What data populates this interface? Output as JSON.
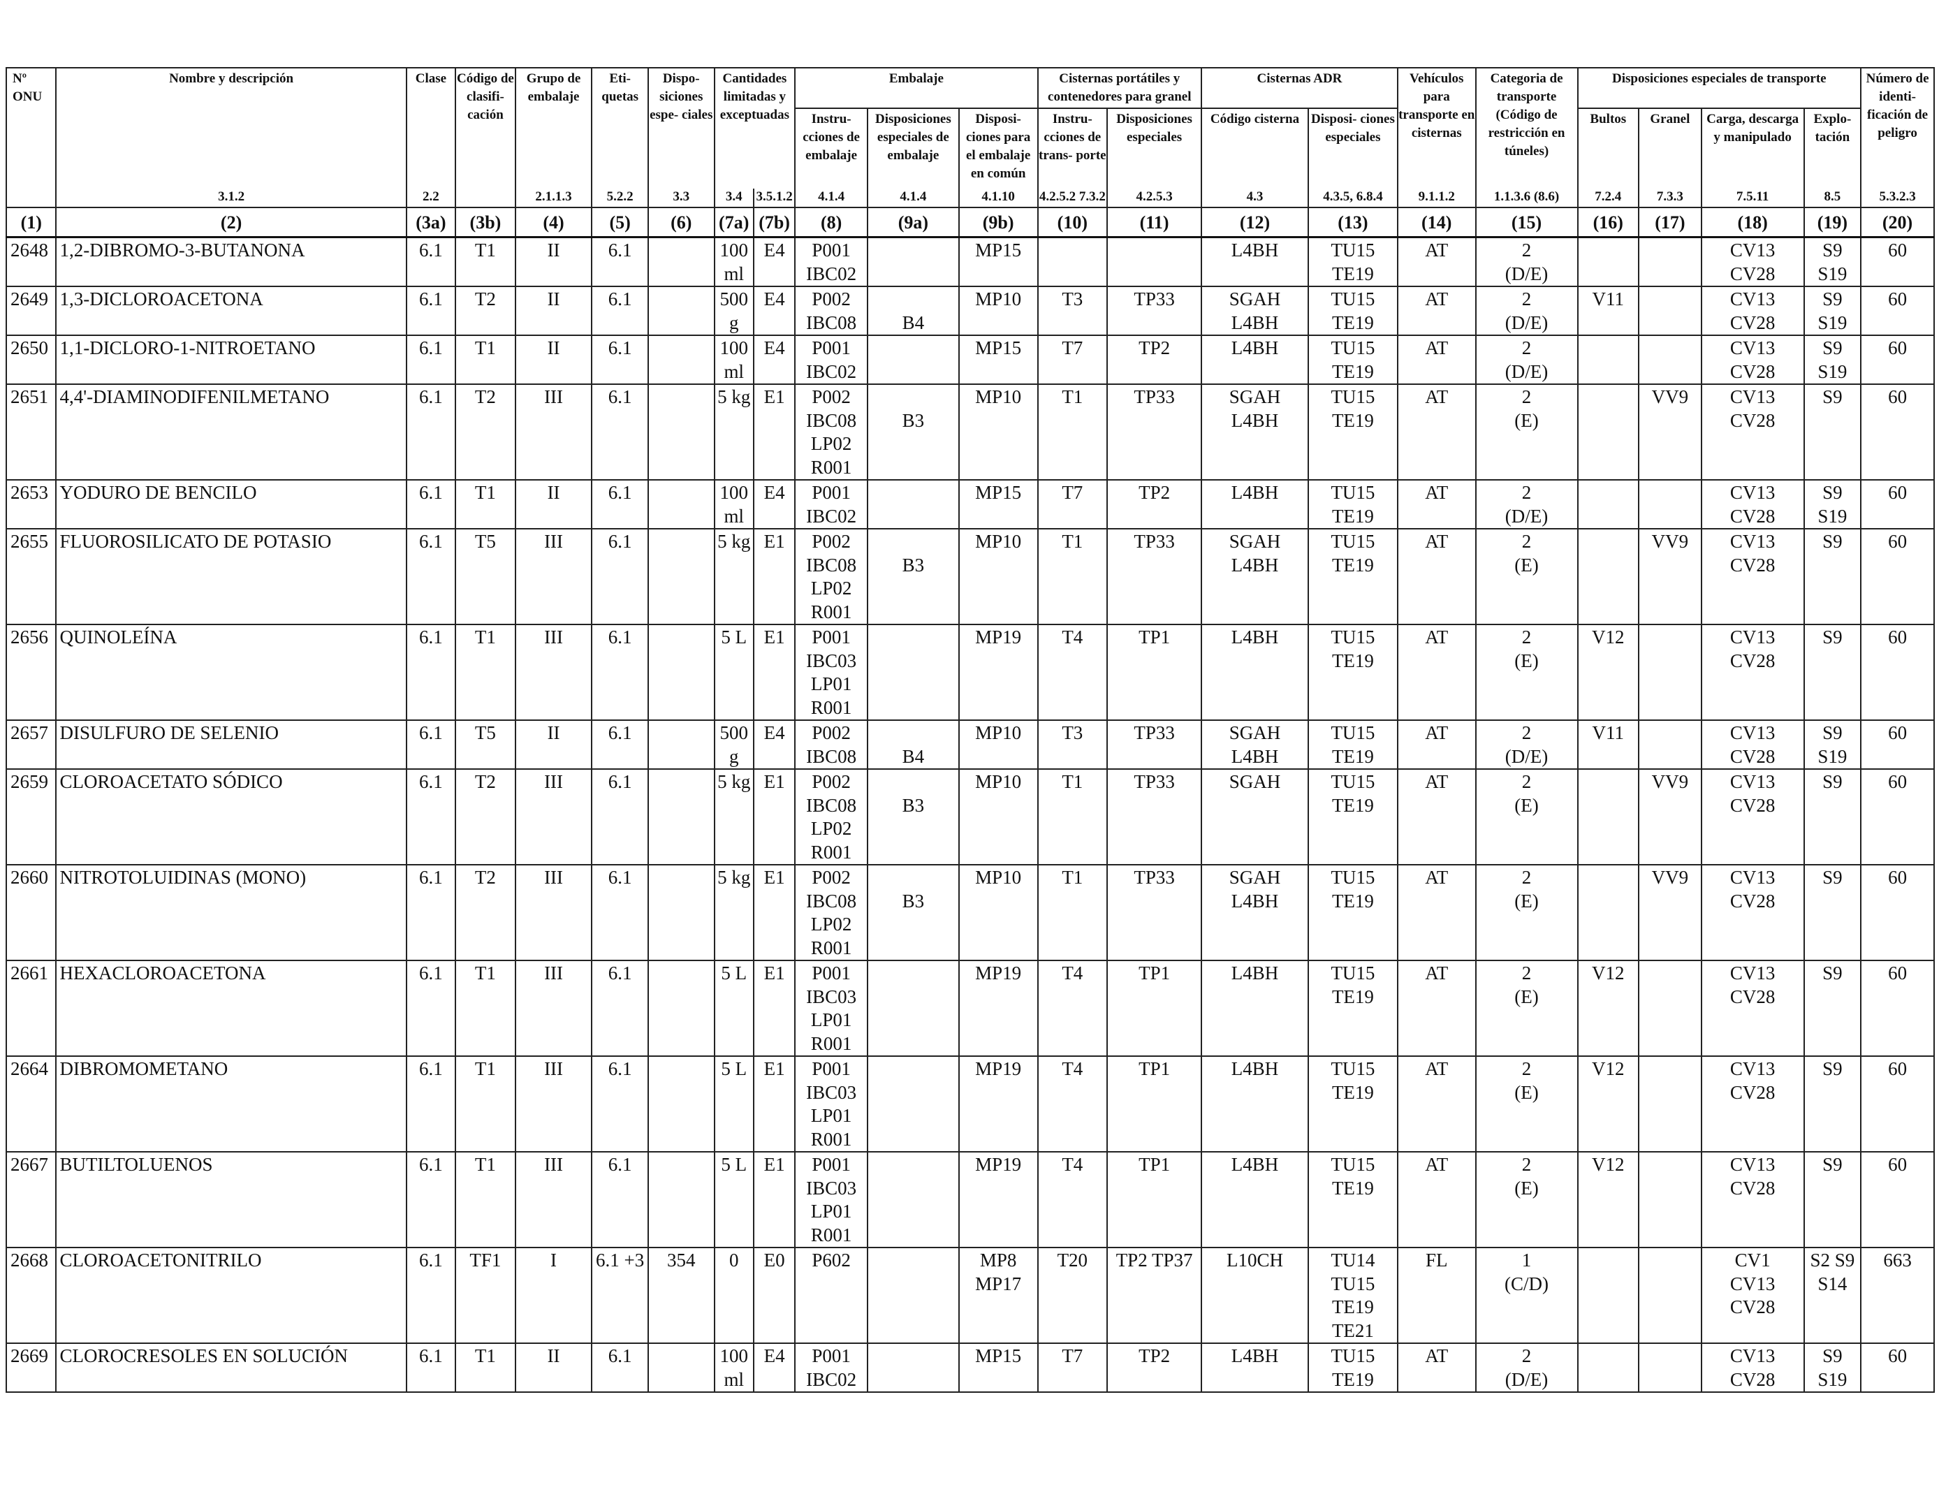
{
  "header": {
    "onu": "Nº ONU",
    "name": "Nombre y descripción",
    "clase": "Clase",
    "codigo": "Código de clasifi- cación",
    "grupo": "Grupo de embalaje",
    "etiquetas": "Eti- quetas",
    "disposiciones": "Dispo- siciones espe- ciales",
    "cantidades": "Cantidades limitadas y exceptuadas",
    "embalaje": "Embalaje",
    "instr_embalaje": "Instru- cciones de embalaje",
    "disp_esp_embalaje": "Disposiciones especiales de embalaje",
    "disp_comun": "Disposi- ciones para el embalaje en común",
    "cisternas_portatiles": "Cisternas portátiles y contenedores para granel",
    "instr_transporte": "Instru- cciones de trans- porte",
    "disp_esp_cist": "Disposiciones especiales",
    "cisternas_adr": "Cisternas ADR",
    "codigo_cisterna": "Código cisterna",
    "disp_esp_adr": "Disposi- ciones especiales",
    "vehiculos": "Vehículos para transporte en cisternas",
    "categoria": "Categoria de transporte (Código de restricción en túneles)",
    "disp_transporte": "Disposiciones especiales de transporte",
    "bultos": "Bultos",
    "granel": "Granel",
    "carga": "Carga, descarga y manipulado",
    "explotacion": "Explo- tación",
    "numero_id": "Número de identi- ficación de peligro"
  },
  "refs": [
    "3.1.2",
    "2.2",
    "",
    "2.1.1.3",
    "5.2.2",
    "3.3",
    "3.4",
    "3.5.1.2",
    "4.1.4",
    "4.1.4",
    "4.1.10",
    "4.2.5.2 7.3.2",
    "4.2.5.3",
    "4.3",
    "4.3.5, 6.8.4",
    "9.1.1.2",
    "1.1.3.6 (8.6)",
    "7.2.4",
    "7.3.3",
    "7.5.11",
    "8.5",
    "5.3.2.3"
  ],
  "col_numbers": [
    "(1)",
    "(2)",
    "(3a)",
    "(3b)",
    "(4)",
    "(5)",
    "(6)",
    "(7a)",
    "(7b)",
    "(8)",
    "(9a)",
    "(9b)",
    "(10)",
    "(11)",
    "(12)",
    "(13)",
    "(14)",
    "(15)",
    "(16)",
    "(17)",
    "(18)",
    "(19)",
    "(20)"
  ],
  "rows": [
    {
      "onu": "2648",
      "name": "1,2-DIBROMO-3-BUTANONA",
      "c3a": "6.1",
      "c3b": "T1",
      "c4": "II",
      "c5": "6.1",
      "c6": "",
      "c7a": "100 ml",
      "c7b": "E4",
      "c8": [
        "P001",
        "IBC02"
      ],
      "c9a": [
        "",
        ""
      ],
      "c9b": "MP15",
      "c10": "",
      "c11": "",
      "c12": [
        "L4BH"
      ],
      "c13": [
        "TU15",
        "TE19"
      ],
      "c14": "AT",
      "c15": [
        "2",
        "(D/E)"
      ],
      "c16": "",
      "c17": "",
      "c18": [
        "CV13",
        "CV28"
      ],
      "c19": [
        "S9",
        "S19"
      ],
      "c20": "60"
    },
    {
      "onu": "2649",
      "name": "1,3-DICLOROACETONA",
      "c3a": "6.1",
      "c3b": "T2",
      "c4": "II",
      "c5": "6.1",
      "c6": "",
      "c7a": "500 g",
      "c7b": "E4",
      "c8": [
        "P002",
        "IBC08"
      ],
      "c9a": [
        "",
        "B4"
      ],
      "c9b": "MP10",
      "c10": "T3",
      "c11": "TP33",
      "c12": [
        "SGAH",
        "L4BH"
      ],
      "c13": [
        "TU15",
        "TE19"
      ],
      "c14": "AT",
      "c15": [
        "2",
        "(D/E)"
      ],
      "c16": "V11",
      "c17": "",
      "c18": [
        "CV13",
        "CV28"
      ],
      "c19": [
        "S9",
        "S19"
      ],
      "c20": "60"
    },
    {
      "onu": "2650",
      "name": "1,1-DICLORO-1-NITROETANO",
      "c3a": "6.1",
      "c3b": "T1",
      "c4": "II",
      "c5": "6.1",
      "c6": "",
      "c7a": "100 ml",
      "c7b": "E4",
      "c8": [
        "P001",
        "IBC02"
      ],
      "c9a": [
        "",
        ""
      ],
      "c9b": "MP15",
      "c10": "T7",
      "c11": "TP2",
      "c12": [
        "L4BH"
      ],
      "c13": [
        "TU15",
        "TE19"
      ],
      "c14": "AT",
      "c15": [
        "2",
        "(D/E)"
      ],
      "c16": "",
      "c17": "",
      "c18": [
        "CV13",
        "CV28"
      ],
      "c19": [
        "S9",
        "S19"
      ],
      "c20": "60"
    },
    {
      "onu": "2651",
      "name": "4,4'-DIAMINODIFENILMETANO",
      "c3a": "6.1",
      "c3b": "T2",
      "c4": "III",
      "c5": "6.1",
      "c6": "",
      "c7a": "5 kg",
      "c7b": "E1",
      "c8": [
        "P002",
        "IBC08",
        "LP02",
        "R001"
      ],
      "c9a": [
        "",
        "B3"
      ],
      "c9b": "MP10",
      "c10": "T1",
      "c11": "TP33",
      "c12": [
        "SGAH",
        "L4BH"
      ],
      "c13": [
        "TU15",
        "TE19"
      ],
      "c14": "AT",
      "c15": [
        "2",
        "(E)"
      ],
      "c16": "",
      "c17": "VV9",
      "c18": [
        "CV13",
        "CV28"
      ],
      "c19": [
        "S9"
      ],
      "c20": "60"
    },
    {
      "onu": "2653",
      "name": "YODURO DE BENCILO",
      "c3a": "6.1",
      "c3b": "T1",
      "c4": "II",
      "c5": "6.1",
      "c6": "",
      "c7a": "100 ml",
      "c7b": "E4",
      "c8": [
        "P001",
        "IBC02"
      ],
      "c9a": [
        "",
        ""
      ],
      "c9b": "MP15",
      "c10": "T7",
      "c11": "TP2",
      "c12": [
        "L4BH"
      ],
      "c13": [
        "TU15",
        "TE19"
      ],
      "c14": "AT",
      "c15": [
        "2",
        "(D/E)"
      ],
      "c16": "",
      "c17": "",
      "c18": [
        "CV13",
        "CV28"
      ],
      "c19": [
        "S9",
        "S19"
      ],
      "c20": "60"
    },
    {
      "onu": "2655",
      "name": "FLUOROSILICATO DE POTASIO",
      "c3a": "6.1",
      "c3b": "T5",
      "c4": "III",
      "c5": "6.1",
      "c6": "",
      "c7a": "5 kg",
      "c7b": "E1",
      "c8": [
        "P002",
        "IBC08",
        "LP02",
        "R001"
      ],
      "c9a": [
        "",
        "B3"
      ],
      "c9b": "MP10",
      "c10": "T1",
      "c11": "TP33",
      "c12": [
        "SGAH",
        "L4BH"
      ],
      "c13": [
        "TU15",
        "TE19"
      ],
      "c14": "AT",
      "c15": [
        "2",
        "(E)"
      ],
      "c16": "",
      "c17": "VV9",
      "c18": [
        "CV13",
        "CV28"
      ],
      "c19": [
        "S9"
      ],
      "c20": "60"
    },
    {
      "onu": "2656",
      "name": "QUINOLEÍNA",
      "c3a": "6.1",
      "c3b": "T1",
      "c4": "III",
      "c5": "6.1",
      "c6": "",
      "c7a": "5 L",
      "c7b": "E1",
      "c8": [
        "P001",
        "IBC03",
        "LP01",
        "R001"
      ],
      "c9a": [
        "",
        ""
      ],
      "c9b": "MP19",
      "c10": "T4",
      "c11": "TP1",
      "c12": [
        "L4BH"
      ],
      "c13": [
        "TU15",
        "TE19"
      ],
      "c14": "AT",
      "c15": [
        "2",
        "(E)"
      ],
      "c16": "V12",
      "c17": "",
      "c18": [
        "CV13",
        "CV28"
      ],
      "c19": [
        "S9"
      ],
      "c20": "60"
    },
    {
      "onu": "2657",
      "name": "DISULFURO DE SELENIO",
      "c3a": "6.1",
      "c3b": "T5",
      "c4": "II",
      "c5": "6.1",
      "c6": "",
      "c7a": "500 g",
      "c7b": "E4",
      "c8": [
        "P002",
        "IBC08"
      ],
      "c9a": [
        "",
        "B4"
      ],
      "c9b": "MP10",
      "c10": "T3",
      "c11": "TP33",
      "c12": [
        "SGAH",
        "L4BH"
      ],
      "c13": [
        "TU15",
        "TE19"
      ],
      "c14": "AT",
      "c15": [
        "2",
        "(D/E)"
      ],
      "c16": "V11",
      "c17": "",
      "c18": [
        "CV13",
        "CV28"
      ],
      "c19": [
        "S9",
        "S19"
      ],
      "c20": "60"
    },
    {
      "onu": "2659",
      "name": "CLOROACETATO SÓDICO",
      "c3a": "6.1",
      "c3b": "T2",
      "c4": "III",
      "c5": "6.1",
      "c6": "",
      "c7a": "5 kg",
      "c7b": "E1",
      "c8": [
        "P002",
        "IBC08",
        "LP02",
        "R001"
      ],
      "c9a": [
        "",
        "B3"
      ],
      "c9b": "MP10",
      "c10": "T1",
      "c11": "TP33",
      "c12": [
        "SGAH"
      ],
      "c13": [
        "TU15",
        "TE19"
      ],
      "c14": "AT",
      "c15": [
        "2",
        "(E)"
      ],
      "c16": "",
      "c17": "VV9",
      "c18": [
        "CV13",
        "CV28"
      ],
      "c19": [
        "S9"
      ],
      "c20": "60"
    },
    {
      "onu": "2660",
      "name": "NITROTOLUIDINAS (MONO)",
      "c3a": "6.1",
      "c3b": "T2",
      "c4": "III",
      "c5": "6.1",
      "c6": "",
      "c7a": "5 kg",
      "c7b": "E1",
      "c8": [
        "P002",
        "IBC08",
        "LP02",
        "R001"
      ],
      "c9a": [
        "",
        "B3"
      ],
      "c9b": "MP10",
      "c10": "T1",
      "c11": "TP33",
      "c12": [
        "SGAH",
        "L4BH"
      ],
      "c13": [
        "TU15",
        "TE19"
      ],
      "c14": "AT",
      "c15": [
        "2",
        "(E)"
      ],
      "c16": "",
      "c17": "VV9",
      "c18": [
        "CV13",
        "CV28"
      ],
      "c19": [
        "S9"
      ],
      "c20": "60"
    },
    {
      "onu": "2661",
      "name": "HEXACLOROACETONA",
      "c3a": "6.1",
      "c3b": "T1",
      "c4": "III",
      "c5": "6.1",
      "c6": "",
      "c7a": "5 L",
      "c7b": "E1",
      "c8": [
        "P001",
        "IBC03",
        "LP01",
        "R001"
      ],
      "c9a": [
        "",
        ""
      ],
      "c9b": "MP19",
      "c10": "T4",
      "c11": "TP1",
      "c12": [
        "L4BH"
      ],
      "c13": [
        "TU15",
        "TE19"
      ],
      "c14": "AT",
      "c15": [
        "2",
        "(E)"
      ],
      "c16": "V12",
      "c17": "",
      "c18": [
        "CV13",
        "CV28"
      ],
      "c19": [
        "S9"
      ],
      "c20": "60"
    },
    {
      "onu": "2664",
      "name": "DIBROMOMETANO",
      "c3a": "6.1",
      "c3b": "T1",
      "c4": "III",
      "c5": "6.1",
      "c6": "",
      "c7a": "5 L",
      "c7b": "E1",
      "c8": [
        "P001",
        "IBC03",
        "LP01",
        "R001"
      ],
      "c9a": [
        "",
        ""
      ],
      "c9b": "MP19",
      "c10": "T4",
      "c11": "TP1",
      "c12": [
        "L4BH"
      ],
      "c13": [
        "TU15",
        "TE19"
      ],
      "c14": "AT",
      "c15": [
        "2",
        "(E)"
      ],
      "c16": "V12",
      "c17": "",
      "c18": [
        "CV13",
        "CV28"
      ],
      "c19": [
        "S9"
      ],
      "c20": "60"
    },
    {
      "onu": "2667",
      "name": "BUTILTOLUENOS",
      "c3a": "6.1",
      "c3b": "T1",
      "c4": "III",
      "c5": "6.1",
      "c6": "",
      "c7a": "5 L",
      "c7b": "E1",
      "c8": [
        "P001",
        "IBC03",
        "LP01",
        "R001"
      ],
      "c9a": [
        "",
        ""
      ],
      "c9b": "MP19",
      "c10": "T4",
      "c11": "TP1",
      "c12": [
        "L4BH"
      ],
      "c13": [
        "TU15",
        "TE19"
      ],
      "c14": "AT",
      "c15": [
        "2",
        "(E)"
      ],
      "c16": "V12",
      "c17": "",
      "c18": [
        "CV13",
        "CV28"
      ],
      "c19": [
        "S9"
      ],
      "c20": "60"
    },
    {
      "onu": "2668",
      "name": "CLOROACETONITRILO",
      "c3a": "6.1",
      "c3b": "TF1",
      "c4": "I",
      "c5": "6.1 +3",
      "c6": "354",
      "c7a": "0",
      "c7b": "E0",
      "c8": [
        "P602"
      ],
      "c9a": [
        "",
        ""
      ],
      "c9b": "MP8 MP17",
      "c10": "T20",
      "c11": "TP2 TP37",
      "c12": [
        "L10CH"
      ],
      "c13": [
        "TU14",
        "TU15",
        "TE19",
        "TE21"
      ],
      "c14": "FL",
      "c15": [
        "1",
        "(C/D)"
      ],
      "c16": "",
      "c17": "",
      "c18": [
        "CV1",
        "CV13",
        "CV28"
      ],
      "c19": [
        "S2 S9",
        "S14"
      ],
      "c20": "663"
    },
    {
      "onu": "2669",
      "name": "CLOROCRESOLES EN SOLUCIÓN",
      "c3a": "6.1",
      "c3b": "T1",
      "c4": "II",
      "c5": "6.1",
      "c6": "",
      "c7a": "100 ml",
      "c7b": "E4",
      "c8": [
        "P001",
        "IBC02"
      ],
      "c9a": [
        "",
        ""
      ],
      "c9b": "MP15",
      "c10": "T7",
      "c11": "TP2",
      "c12": [
        "L4BH"
      ],
      "c13": [
        "TU15",
        "TE19"
      ],
      "c14": "AT",
      "c15": [
        "2",
        "(D/E)"
      ],
      "c16": "",
      "c17": "",
      "c18": [
        "CV13",
        "CV28"
      ],
      "c19": [
        "S9",
        "S19"
      ],
      "c20": "60"
    }
  ]
}
